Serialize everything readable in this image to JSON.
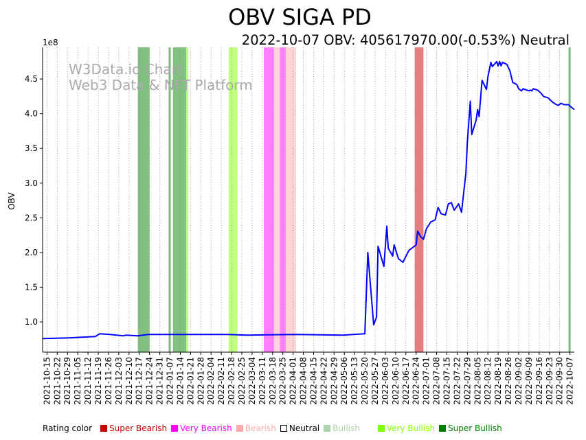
{
  "title": "OBV SIGA PD",
  "subtitle": "2022-10-07 OBV: 405617970.00(-0.53%) Neutral",
  "watermark": [
    "W3Data.io Chart",
    "Web3 Data & NFT Platform"
  ],
  "legend": {
    "label": "Rating color",
    "items": [
      {
        "label": "Super Bearish",
        "color": "#cc0000",
        "text_color": "#cc0000"
      },
      {
        "label": "Very Bearish",
        "color": "#ff00ff",
        "text_color": "#ff00ff"
      },
      {
        "label": "Bearish",
        "color": "#ffaaaa",
        "text_color": "#ffaaaa"
      },
      {
        "label": "Neutral",
        "color": "#ffffff",
        "text_color": "#000000"
      },
      {
        "label": "Bullish",
        "color": "#aad4aa",
        "text_color": "#aad4aa"
      },
      {
        "label": "Very Bullish",
        "color": "#80ff00",
        "text_color": "#80ff00"
      },
      {
        "label": "Super Bullish",
        "color": "#008000",
        "text_color": "#008000"
      }
    ]
  },
  "chart_data": {
    "type": "line",
    "title": "OBV SIGA PD",
    "ylabel": "OBV",
    "y_multiplier_label": "1e8",
    "x_unit": "days since 2021-10-15",
    "xlim": [
      -3,
      360
    ],
    "ylim": [
      0.565,
      4.956
    ],
    "line_color": "#0000ff",
    "grid": "vertical dotted at x ticks",
    "x_tick_labels": [
      "2021-10-15",
      "2021-10-22",
      "2021-10-29",
      "2021-11-05",
      "2021-11-12",
      "2021-11-19",
      "2021-11-26",
      "2021-12-03",
      "2021-12-10",
      "2021-12-17",
      "2021-12-24",
      "2021-12-31",
      "2022-01-07",
      "2022-01-14",
      "2022-01-21",
      "2022-01-28",
      "2022-02-04",
      "2022-02-11",
      "2022-02-18",
      "2022-02-25",
      "2022-03-04",
      "2022-03-11",
      "2022-03-18",
      "2022-03-25",
      "2022-04-01",
      "2022-04-08",
      "2022-04-15",
      "2022-04-22",
      "2022-04-29",
      "2022-05-06",
      "2022-05-13",
      "2022-05-20",
      "2022-05-27",
      "2022-06-03",
      "2022-06-10",
      "2022-06-17",
      "2022-06-24",
      "2022-07-01",
      "2022-07-08",
      "2022-07-15",
      "2022-07-22",
      "2022-07-29",
      "2022-08-05",
      "2022-08-12",
      "2022-08-19",
      "2022-08-26",
      "2022-09-02",
      "2022-09-09",
      "2022-09-16",
      "2022-09-23",
      "2022-09-30",
      "2022-10-07"
    ],
    "x_tick_step_days": 7,
    "y_ticks": [
      1.0,
      1.5,
      2.0,
      2.5,
      3.0,
      3.5,
      4.0,
      4.5
    ],
    "y_tick_labels": [
      "1.0",
      "1.5",
      "2.0",
      "2.5",
      "3.0",
      "3.5",
      "4.0",
      "4.5"
    ],
    "x": [
      -3,
      15,
      24,
      33,
      36,
      43,
      52,
      54,
      62,
      69,
      80,
      99,
      123,
      137,
      170,
      202,
      217,
      219,
      223,
      225,
      226,
      230,
      232,
      233,
      236,
      237,
      240,
      243,
      247,
      252,
      253,
      255,
      257,
      259,
      262,
      265,
      267,
      269,
      272,
      274,
      276,
      278,
      281,
      283,
      286,
      287,
      289,
      290,
      293,
      294,
      295,
      297,
      300,
      301,
      303,
      304,
      307,
      308,
      309,
      310,
      311,
      314,
      316,
      318,
      320,
      321,
      322,
      324,
      325,
      329,
      330,
      331,
      332,
      335,
      337,
      339,
      342,
      345,
      347,
      349,
      351,
      353,
      356,
      357,
      360
    ],
    "y": [
      0.76,
      0.77,
      0.78,
      0.79,
      0.83,
      0.82,
      0.8,
      0.81,
      0.8,
      0.82,
      0.82,
      0.82,
      0.82,
      0.81,
      0.82,
      0.81,
      0.83,
      2.0,
      0.96,
      1.07,
      2.09,
      1.8,
      2.38,
      2.06,
      1.95,
      2.11,
      1.91,
      1.86,
      2.03,
      2.11,
      2.31,
      2.23,
      2.19,
      2.34,
      2.44,
      2.47,
      2.65,
      2.56,
      2.54,
      2.7,
      2.72,
      2.61,
      2.7,
      2.58,
      3.15,
      3.59,
      4.18,
      3.7,
      3.91,
      4.06,
      3.96,
      4.48,
      4.35,
      4.53,
      4.74,
      4.68,
      4.75,
      4.69,
      4.75,
      4.69,
      4.74,
      4.71,
      4.62,
      4.45,
      4.43,
      4.41,
      4.36,
      4.33,
      4.36,
      4.33,
      4.34,
      4.33,
      4.36,
      4.34,
      4.3,
      4.25,
      4.23,
      4.17,
      4.14,
      4.12,
      4.15,
      4.13,
      4.13,
      4.11,
      4.06
    ],
    "rating_bands": [
      {
        "start": 62,
        "end": 70,
        "rating": "Super Bullish",
        "color": "#80c080"
      },
      {
        "start": 83,
        "end": 84.5,
        "rating": "Super Bullish",
        "color": "#80c080"
      },
      {
        "start": 86,
        "end": 95,
        "rating": "Super Bullish",
        "color": "#80c080"
      },
      {
        "start": 95,
        "end": 96.5,
        "rating": "Very Bullish",
        "color": "#c0ff80"
      },
      {
        "start": 124,
        "end": 130,
        "rating": "Very Bullish",
        "color": "#c0ff80"
      },
      {
        "start": 148,
        "end": 155,
        "rating": "Very Bearish",
        "color": "#ff80ff"
      },
      {
        "start": 155,
        "end": 159,
        "rating": "Bearish",
        "color": "#ffd4d4"
      },
      {
        "start": 159,
        "end": 163,
        "rating": "Very Bearish",
        "color": "#ff80ff"
      },
      {
        "start": 163,
        "end": 170,
        "rating": "Bearish",
        "color": "#ffd4d4"
      },
      {
        "start": 251,
        "end": 257,
        "rating": "Super Bearish",
        "color": "#e57f7f"
      },
      {
        "start": 356,
        "end": 357.5,
        "rating": "Super Bullish",
        "color": "#80c080"
      }
    ]
  }
}
